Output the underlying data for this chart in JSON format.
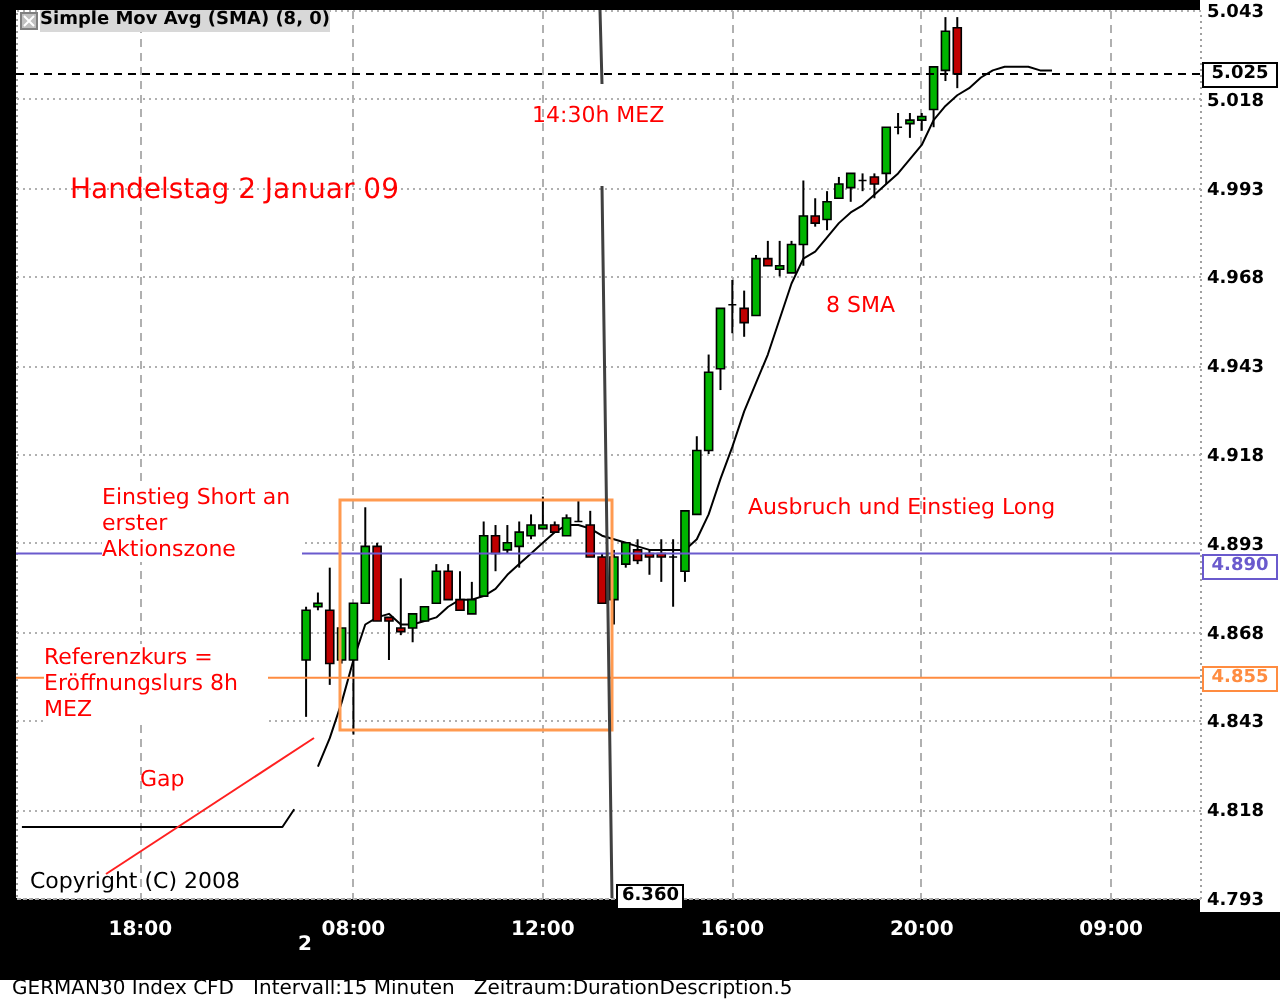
{
  "chart_data": {
    "type": "candlestick",
    "categories": [
      null,
      null,
      null,
      null,
      null,
      null,
      null,
      null,
      null,
      null,
      "18:00",
      null,
      null,
      null,
      null,
      null,
      null,
      null,
      null,
      null,
      null,
      null,
      null,
      null,
      null,
      null,
      null,
      null,
      "08:00",
      null,
      null,
      null,
      null,
      null,
      null,
      null,
      null,
      null,
      null,
      null,
      null,
      null,
      null,
      null,
      "12:00",
      null,
      null,
      null,
      null,
      null,
      null,
      null,
      null,
      null,
      null,
      null,
      null,
      null,
      null,
      null,
      "16:00",
      null,
      null,
      null,
      null,
      null,
      null,
      null,
      null,
      null,
      null,
      null,
      null,
      null,
      null,
      null,
      "20:00",
      null,
      null,
      null,
      null,
      null,
      null,
      null,
      null,
      null,
      null,
      null,
      null,
      null,
      null,
      null,
      "09:00",
      null,
      null,
      null,
      null,
      null,
      null,
      null
    ],
    "ohlc": [
      null,
      null,
      null,
      null,
      null,
      null,
      null,
      null,
      null,
      null,
      null,
      null,
      null,
      null,
      null,
      null,
      null,
      null,
      null,
      null,
      null,
      null,
      null,
      null,
      [
        4.86,
        4.875,
        4.844,
        4.874
      ],
      [
        4.875,
        4.879,
        4.874,
        4.876
      ],
      [
        4.874,
        4.886,
        4.853,
        4.859
      ],
      [
        4.86,
        4.869,
        4.859,
        4.869
      ],
      [
        4.86,
        4.876,
        4.839,
        4.876
      ],
      [
        4.876,
        4.903,
        4.876,
        4.892
      ],
      [
        4.892,
        4.893,
        4.871,
        4.871
      ],
      [
        4.872,
        4.872,
        4.86,
        4.871
      ],
      [
        4.869,
        4.883,
        4.867,
        4.868
      ],
      [
        4.869,
        4.873,
        4.865,
        4.873
      ],
      [
        4.871,
        4.875,
        4.871,
        4.875
      ],
      [
        4.876,
        4.887,
        4.876,
        4.885
      ],
      [
        4.885,
        4.887,
        4.877,
        4.877
      ],
      [
        4.877,
        4.885,
        4.874,
        4.874
      ],
      [
        4.873,
        4.882,
        4.873,
        4.877
      ],
      [
        4.878,
        4.899,
        4.878,
        4.895
      ],
      [
        4.895,
        4.898,
        4.885,
        4.89
      ],
      [
        4.891,
        4.898,
        4.89,
        4.893
      ],
      [
        4.892,
        4.899,
        4.886,
        4.896
      ],
      [
        4.895,
        4.901,
        4.894,
        4.898
      ],
      [
        4.897,
        4.906,
        4.897,
        4.898
      ],
      [
        4.898,
        4.899,
        4.896,
        4.896
      ],
      [
        4.895,
        4.901,
        4.895,
        4.9
      ],
      [
        4.899,
        4.905,
        4.899,
        4.899
      ],
      [
        4.898,
        4.902,
        4.889,
        4.889
      ],
      [
        4.889,
        4.89,
        4.876,
        4.876
      ],
      [
        4.877,
        4.891,
        4.87,
        4.889
      ],
      [
        4.887,
        4.893,
        4.886,
        4.893
      ],
      [
        4.891,
        4.894,
        4.887,
        4.888
      ],
      [
        4.89,
        4.891,
        4.884,
        4.889
      ],
      [
        4.89,
        4.894,
        4.882,
        4.889
      ],
      [
        4.889,
        4.894,
        4.875,
        4.889
      ],
      [
        4.885,
        4.902,
        4.882,
        4.902
      ],
      [
        4.901,
        4.923,
        4.901,
        4.919
      ],
      [
        4.919,
        4.946,
        4.918,
        4.941
      ],
      [
        4.942,
        4.959,
        4.936,
        4.959
      ],
      [
        4.96,
        4.967,
        4.952,
        4.96
      ],
      [
        4.959,
        4.964,
        4.951,
        4.955
      ],
      [
        4.957,
        4.974,
        4.957,
        4.973
      ],
      [
        4.973,
        4.978,
        4.971,
        4.971
      ],
      [
        4.97,
        4.978,
        4.968,
        4.971
      ],
      [
        4.969,
        4.978,
        4.969,
        4.977
      ],
      [
        4.977,
        4.995,
        4.971,
        4.985
      ],
      [
        4.985,
        4.99,
        4.982,
        4.983
      ],
      [
        4.984,
        4.992,
        4.981,
        4.989
      ],
      [
        4.99,
        4.996,
        4.99,
        4.994
      ],
      [
        4.993,
        4.997,
        4.989,
        4.997
      ],
      [
        4.995,
        4.997,
        4.992,
        4.995
      ],
      [
        4.996,
        4.997,
        4.99,
        4.994
      ],
      [
        4.997,
        5.01,
        4.994,
        5.01
      ],
      [
        5.01,
        5.014,
        5.008,
        5.01
      ],
      [
        5.011,
        5.014,
        5.007,
        5.012
      ],
      [
        5.012,
        5.014,
        5.009,
        5.013
      ],
      [
        5.015,
        5.027,
        5.01,
        5.027
      ],
      [
        5.026,
        5.041,
        5.023,
        5.037
      ],
      [
        5.038,
        5.041,
        5.021,
        5.025
      ],
      null,
      null,
      null,
      null,
      null,
      null,
      null,
      null,
      null,
      null,
      null,
      null,
      null,
      null,
      null,
      null,
      null,
      null,
      null,
      null
    ],
    "series": [
      {
        "type": "line",
        "color": "#000000",
        "values": [
          4.813,
          4.813,
          4.813,
          4.813,
          4.813,
          4.813,
          4.813,
          4.813,
          4.813,
          4.813,
          4.813,
          4.813,
          4.813,
          4.813,
          4.813,
          4.813,
          4.813,
          4.813,
          4.813,
          4.813,
          4.813,
          4.813,
          4.813,
          4.818,
          null,
          4.83,
          4.838,
          4.848,
          4.86,
          4.87,
          4.872,
          4.873,
          4.87,
          4.87,
          4.871,
          4.872,
          4.875,
          4.877,
          4.877,
          4.878,
          4.88,
          4.884,
          4.887,
          4.89,
          4.893,
          4.896,
          4.898,
          4.898,
          4.897,
          4.895,
          4.894,
          4.893,
          4.892,
          4.891,
          4.891,
          4.891,
          4.891,
          4.894,
          4.901,
          4.911,
          4.92,
          4.93,
          4.938,
          4.946,
          4.956,
          4.966,
          4.973,
          4.975,
          4.979,
          4.983,
          4.986,
          4.988,
          4.991,
          4.994,
          4.997,
          5.001,
          5.005,
          5.012,
          5.016,
          5.019,
          5.021,
          5.024,
          5.026,
          5.027,
          5.027,
          5.027,
          5.026,
          5.026,
          null,
          null,
          null,
          null,
          null,
          null,
          null,
          null,
          null,
          null,
          null,
          null
        ]
      }
    ],
    "ylim": [
      4.793,
      5.043
    ],
    "yticks": [
      4.793,
      4.818,
      4.843,
      4.868,
      4.893,
      4.918,
      4.943,
      4.968,
      4.993,
      5.018,
      5.043
    ],
    "grid": true,
    "ref_lines": [
      {
        "axis": "y",
        "value": 4.89,
        "label": "4.890",
        "color": "#6a5acd"
      },
      {
        "axis": "y",
        "value": 4.855,
        "label": "4.855",
        "color": "#ff8c40"
      },
      {
        "axis": "y",
        "value": 5.025,
        "label": "5.025",
        "color": "#000000",
        "line_style": "dashed"
      }
    ],
    "annotations": [
      "Simple Mov Avg (SMA) (8, 0)",
      "14:30h MEZ",
      "Handelstag 2 Januar 09",
      "8 SMA",
      "Einstieg Short an erster Aktionszone",
      "Ausbruch und Einstieg Long",
      "Referenzkurs = Eröffnungslurs 8h MEZ",
      "Gap",
      "Copyright (C) 2008",
      "6.360",
      "2",
      "GERMAN30 Index CFD   Intervall:15 Minuten   Zeitraum:DurationDescription.5"
    ]
  }
}
